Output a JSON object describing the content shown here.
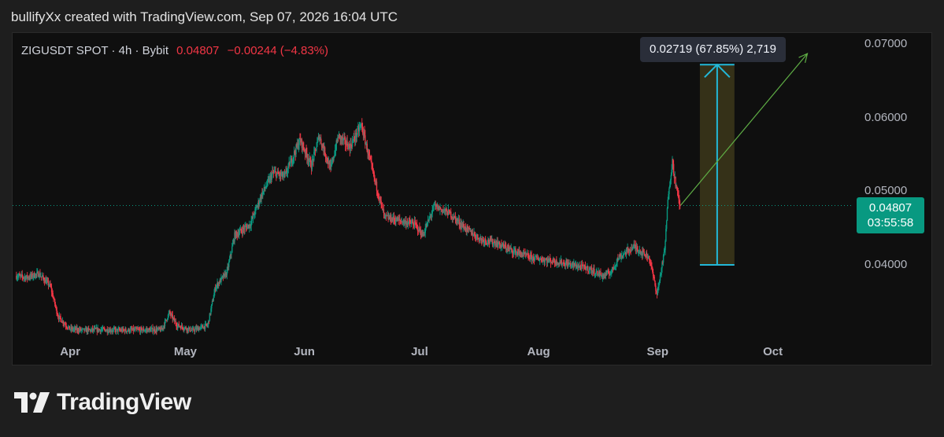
{
  "caption": "bullifyXx created with TradingView.com, Sep 07, 2026 16:04 UTC",
  "legend": {
    "symbol": "ZIGUSDT SPOT · 4h · Bybit",
    "last": "0.04807",
    "change": "−0.00244 (−4.83%)"
  },
  "measure_label": "0.02719 (67.85%) 2,719",
  "price_badge": {
    "price": "0.04807",
    "countdown": "03:55:58"
  },
  "brand": {
    "name": "TradingView",
    "logo_icon": "tradingview-logo-icon"
  },
  "colors": {
    "up": "#089981",
    "down": "#f23645",
    "range_fill": "#3a3519",
    "range_line": "#22b8d8",
    "projection": "#5fae45"
  },
  "chart_data": {
    "type": "candlestick",
    "interval": "4h",
    "x_ticks": [
      "Apr",
      "May",
      "Jun",
      "Jul",
      "Aug",
      "Sep",
      "Oct"
    ],
    "y_ticks": [
      "0.07000",
      "0.06000",
      "0.05000",
      "0.04000"
    ],
    "ylim": [
      0.0305,
      0.0715
    ],
    "last_price": 0.04807,
    "series": [
      {
        "x": "2026-03-18",
        "close": 0.0385
      },
      {
        "x": "2026-03-21",
        "close": 0.0383
      },
      {
        "x": "2026-03-24",
        "close": 0.0388
      },
      {
        "x": "2026-03-27",
        "close": 0.0371
      },
      {
        "x": "2026-03-29",
        "close": 0.033
      },
      {
        "x": "2026-04-01",
        "close": 0.0313
      },
      {
        "x": "2026-04-05",
        "close": 0.0311
      },
      {
        "x": "2026-04-09",
        "close": 0.0312
      },
      {
        "x": "2026-04-14",
        "close": 0.0311
      },
      {
        "x": "2026-04-25",
        "close": 0.0312
      },
      {
        "x": "2026-04-27",
        "close": 0.0335
      },
      {
        "x": "2026-04-29",
        "close": 0.0318
      },
      {
        "x": "2026-05-03",
        "close": 0.0311
      },
      {
        "x": "2026-05-07",
        "close": 0.0318
      },
      {
        "x": "2026-05-09",
        "close": 0.037
      },
      {
        "x": "2026-05-12",
        "close": 0.039
      },
      {
        "x": "2026-05-14",
        "close": 0.044
      },
      {
        "x": "2026-05-18",
        "close": 0.0455
      },
      {
        "x": "2026-05-21",
        "close": 0.0495
      },
      {
        "x": "2026-05-24",
        "close": 0.0525
      },
      {
        "x": "2026-05-27",
        "close": 0.052
      },
      {
        "x": "2026-05-31",
        "close": 0.057
      },
      {
        "x": "2026-06-03",
        "close": 0.0535
      },
      {
        "x": "2026-06-05",
        "close": 0.0575
      },
      {
        "x": "2026-06-08",
        "close": 0.053
      },
      {
        "x": "2026-06-10",
        "close": 0.0575
      },
      {
        "x": "2026-06-13",
        "close": 0.056
      },
      {
        "x": "2026-06-16",
        "close": 0.059
      },
      {
        "x": "2026-06-19",
        "close": 0.0525
      },
      {
        "x": "2026-06-22",
        "close": 0.0465
      },
      {
        "x": "2026-06-26",
        "close": 0.046
      },
      {
        "x": "2026-06-30",
        "close": 0.0455
      },
      {
        "x": "2026-07-02",
        "close": 0.044
      },
      {
        "x": "2026-07-05",
        "close": 0.048
      },
      {
        "x": "2026-07-09",
        "close": 0.047
      },
      {
        "x": "2026-07-13",
        "close": 0.045
      },
      {
        "x": "2026-07-17",
        "close": 0.0435
      },
      {
        "x": "2026-07-21",
        "close": 0.043
      },
      {
        "x": "2026-07-25",
        "close": 0.042
      },
      {
        "x": "2026-07-30",
        "close": 0.041
      },
      {
        "x": "2026-08-05",
        "close": 0.0405
      },
      {
        "x": "2026-08-10",
        "close": 0.04
      },
      {
        "x": "2026-08-14",
        "close": 0.0395
      },
      {
        "x": "2026-08-18",
        "close": 0.0385
      },
      {
        "x": "2026-08-20",
        "close": 0.039
      },
      {
        "x": "2026-08-22",
        "close": 0.041
      },
      {
        "x": "2026-08-26",
        "close": 0.0425
      },
      {
        "x": "2026-08-30",
        "close": 0.041
      },
      {
        "x": "2026-09-01",
        "close": 0.036
      },
      {
        "x": "2026-09-03",
        "close": 0.042
      },
      {
        "x": "2026-09-04",
        "close": 0.05
      },
      {
        "x": "2026-09-05",
        "close": 0.054
      },
      {
        "x": "2026-09-06",
        "close": 0.0505
      },
      {
        "x": "2026-09-07",
        "close": 0.04807
      }
    ],
    "price_range": {
      "from_date": "2026-09-12",
      "to_date": "2026-09-21",
      "from_price": 0.04,
      "to_price": 0.0672
    },
    "projection": {
      "from_date": "2026-09-07",
      "from_price": 0.0481,
      "to_date": "2026-10-10",
      "to_price": 0.0687
    }
  }
}
